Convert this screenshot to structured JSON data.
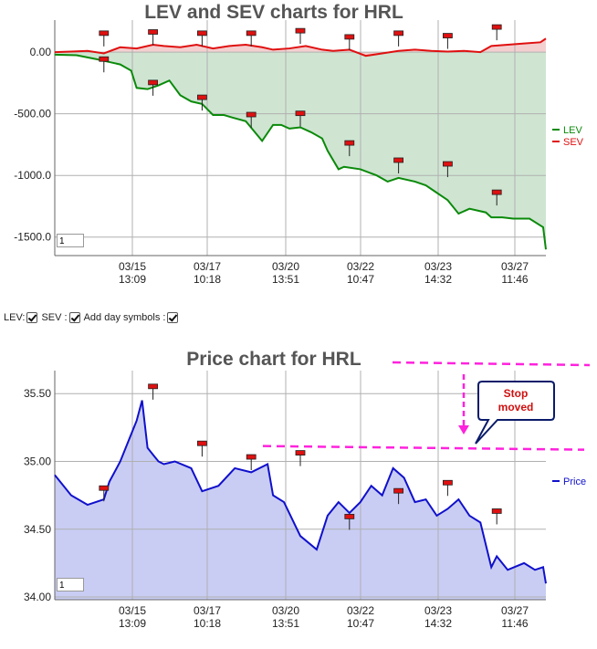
{
  "chart_data": [
    {
      "type": "line",
      "title": "LEV and SEV charts for HRL",
      "x_ticks": [
        "03/15\n13:09",
        "03/17\n10:18",
        "03/20\n13:51",
        "03/22\n10:47",
        "03/23\n14:32",
        "03/27\n11:46"
      ],
      "y_ticks": [
        "0.00",
        "-500.00",
        "-1000.0",
        "-1500.0"
      ],
      "ylim": [
        -1650,
        260
      ],
      "grid": true,
      "legend": "right",
      "series": [
        {
          "name": "LEV",
          "color": "#0a8a0a",
          "fill": "#cfe5d2",
          "x": [
            0,
            0.4,
            0.8,
            1.0,
            1.2,
            1.4,
            1.5,
            1.7,
            1.9,
            2.1,
            2.3,
            2.5,
            2.7,
            2.9,
            3.1,
            3.25,
            3.5,
            3.8,
            4.0,
            4.15,
            4.3,
            4.5,
            4.7,
            4.9,
            5.0,
            5.2,
            5.3,
            5.6,
            5.9,
            6.1,
            6.3,
            6.6,
            6.8,
            7.0,
            7.2,
            7.4,
            7.6,
            7.9,
            8.0,
            8.2,
            8.4,
            8.7,
            8.95,
            9.0
          ],
          "values": [
            -20,
            -25,
            -60,
            -80,
            -100,
            -150,
            -290,
            -300,
            -270,
            -230,
            -350,
            -400,
            -420,
            -510,
            -510,
            -530,
            -560,
            -720,
            -590,
            -590,
            -620,
            -610,
            -650,
            -700,
            -800,
            -950,
            -930,
            -950,
            -1000,
            -1050,
            -1020,
            -1050,
            -1080,
            -1140,
            -1200,
            -1310,
            -1270,
            -1300,
            -1340,
            -1340,
            -1350,
            -1350,
            -1420,
            -1600
          ]
        },
        {
          "name": "SEV",
          "color": "#e01010",
          "fill": "#f4cfcf",
          "x": [
            0,
            0.3,
            0.6,
            0.9,
            1.2,
            1.5,
            1.8,
            2.0,
            2.3,
            2.6,
            2.9,
            3.2,
            3.5,
            3.8,
            4.0,
            4.3,
            4.6,
            4.9,
            5.1,
            5.4,
            5.7,
            6.0,
            6.3,
            6.6,
            6.9,
            7.2,
            7.5,
            7.8,
            8.0,
            8.3,
            8.6,
            8.9,
            9.0
          ],
          "values": [
            0,
            5,
            10,
            -10,
            40,
            30,
            60,
            50,
            40,
            60,
            30,
            50,
            60,
            40,
            20,
            30,
            50,
            20,
            10,
            20,
            -30,
            -10,
            10,
            20,
            10,
            5,
            10,
            0,
            50,
            60,
            70,
            80,
            110
          ]
        }
      ],
      "day_symbols": [
        {
          "x": 0.9,
          "y": 150
        },
        {
          "x": 0.9,
          "y": -60
        },
        {
          "x": 1.8,
          "y": 160
        },
        {
          "x": 1.8,
          "y": -250
        },
        {
          "x": 2.7,
          "y": 150
        },
        {
          "x": 2.7,
          "y": -370
        },
        {
          "x": 3.6,
          "y": 150
        },
        {
          "x": 3.6,
          "y": -510
        },
        {
          "x": 4.5,
          "y": 170
        },
        {
          "x": 4.5,
          "y": -500
        },
        {
          "x": 5.4,
          "y": 120
        },
        {
          "x": 5.4,
          "y": -740
        },
        {
          "x": 6.3,
          "y": 150
        },
        {
          "x": 6.3,
          "y": -880
        },
        {
          "x": 7.2,
          "y": 130
        },
        {
          "x": 7.2,
          "y": -910
        },
        {
          "x": 8.1,
          "y": 200
        },
        {
          "x": 8.1,
          "y": -1140
        }
      ],
      "input_value": "1"
    },
    {
      "type": "area",
      "title": "Price chart for HRL",
      "x_ticks": [
        "03/15\n13:09",
        "03/17\n10:18",
        "03/20\n13:51",
        "03/22\n10:47",
        "03/23\n14:32",
        "03/27\n11:46"
      ],
      "y_ticks": [
        "35.50",
        "35.00",
        "34.50",
        "34.00"
      ],
      "ylim": [
        33.98,
        35.67
      ],
      "grid": true,
      "legend": "right",
      "series": [
        {
          "name": "Price",
          "color": "#1010cc",
          "fill": "#c9cdf4",
          "x": [
            0,
            0.3,
            0.6,
            0.9,
            1.0,
            1.2,
            1.4,
            1.5,
            1.6,
            1.7,
            1.8,
            1.9,
            2.0,
            2.2,
            2.5,
            2.7,
            3.0,
            3.3,
            3.6,
            3.9,
            4.0,
            4.2,
            4.5,
            4.8,
            5.0,
            5.2,
            5.4,
            5.6,
            5.8,
            6.0,
            6.2,
            6.4,
            6.6,
            6.8,
            7.0,
            7.2,
            7.4,
            7.6,
            7.8,
            8.0,
            8.1,
            8.3,
            8.6,
            8.8,
            8.95,
            9.0
          ],
          "values": [
            34.9,
            34.75,
            34.68,
            34.72,
            34.85,
            35.0,
            35.2,
            35.3,
            35.45,
            35.1,
            35.05,
            35.0,
            34.98,
            35.0,
            34.95,
            34.78,
            34.82,
            34.95,
            34.92,
            34.98,
            34.75,
            34.7,
            34.45,
            34.35,
            34.6,
            34.7,
            34.62,
            34.7,
            34.82,
            34.75,
            34.95,
            34.88,
            34.7,
            34.72,
            34.6,
            34.65,
            34.72,
            34.6,
            34.55,
            34.22,
            34.3,
            34.2,
            34.25,
            34.2,
            34.22,
            34.1
          ]
        }
      ],
      "day_symbols": [
        {
          "x": 0.9,
          "y": 34.8
        },
        {
          "x": 1.8,
          "y": 35.55
        },
        {
          "x": 2.7,
          "y": 35.13
        },
        {
          "x": 3.6,
          "y": 35.03
        },
        {
          "x": 4.5,
          "y": 35.06
        },
        {
          "x": 5.4,
          "y": 34.59
        },
        {
          "x": 6.3,
          "y": 34.78
        },
        {
          "x": 7.2,
          "y": 34.84
        },
        {
          "x": 8.1,
          "y": 34.63
        }
      ],
      "annotation": {
        "text": [
          "Stop",
          "moved"
        ],
        "stop_level": 35.1,
        "upper_level": 35.85
      },
      "input_value": "1"
    }
  ],
  "controls": {
    "lev_label": "LEV:",
    "sev_label": "SEV :",
    "day_symbols_label": "Add day symbols :"
  }
}
